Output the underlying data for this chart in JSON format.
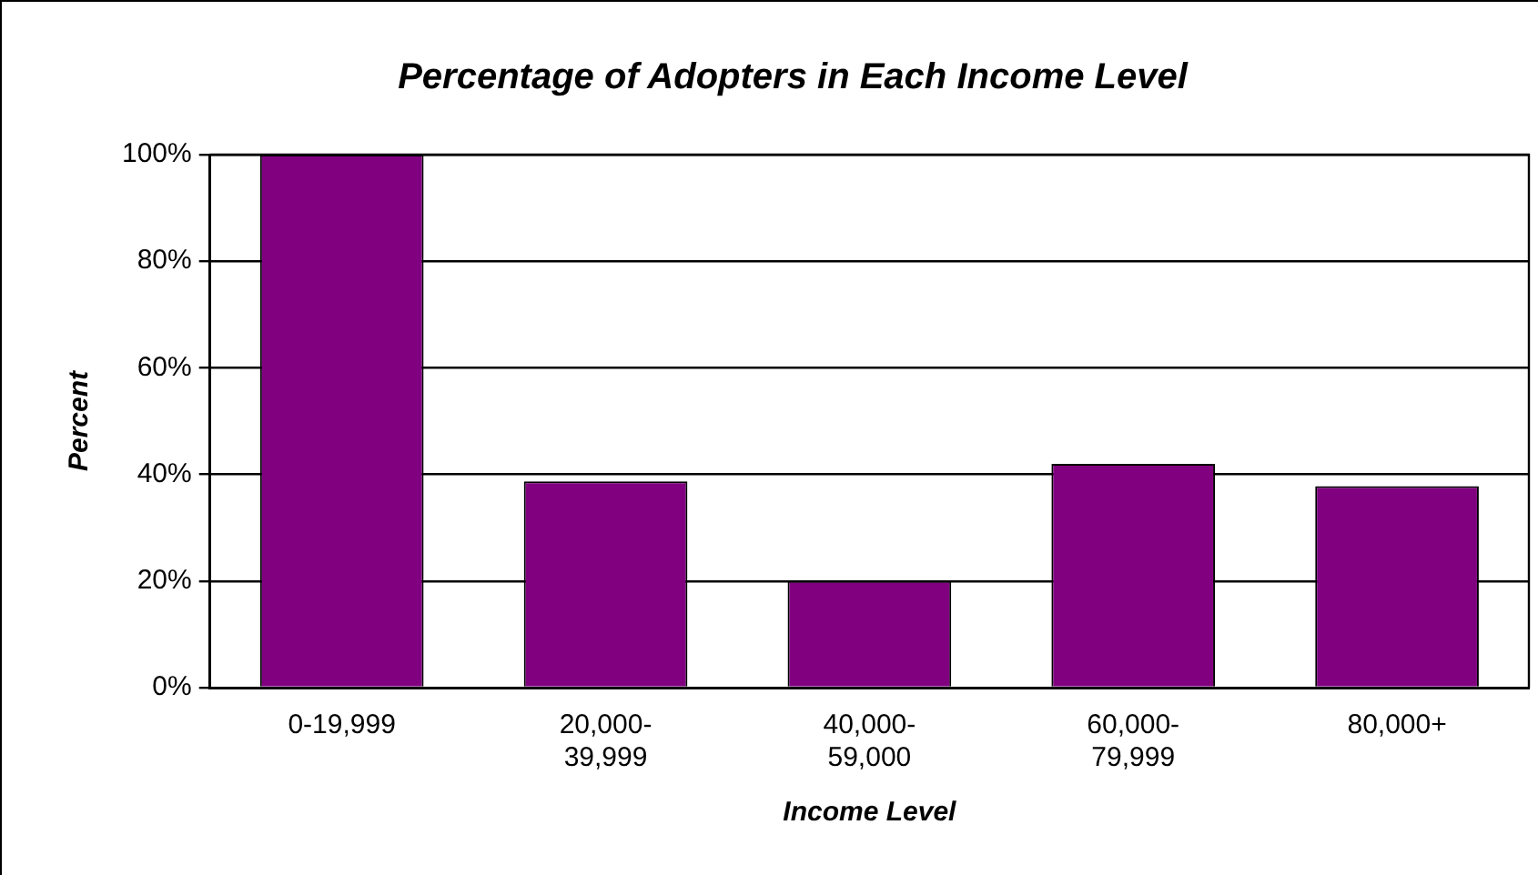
{
  "chart_data": {
    "type": "bar",
    "title": "Percentage of Adopters in Each Income Level",
    "xlabel": "Income Level",
    "ylabel": "Percent",
    "categories": [
      "0-19,999",
      "20,000-\n39,999",
      "40,000-\n59,000",
      "60,000-\n79,999",
      "80,000+"
    ],
    "values": [
      100,
      38.7,
      20,
      42,
      37.8
    ],
    "color": "#800080",
    "ylim": [
      0,
      100
    ],
    "yticks": [
      {
        "value": 0,
        "label": "0%"
      },
      {
        "value": 20,
        "label": "20%"
      },
      {
        "value": 40,
        "label": "40%"
      },
      {
        "value": 60,
        "label": "60%"
      },
      {
        "value": 80,
        "label": "80%"
      },
      {
        "value": 100,
        "label": "100%"
      }
    ],
    "grid": "y",
    "legend": false
  }
}
